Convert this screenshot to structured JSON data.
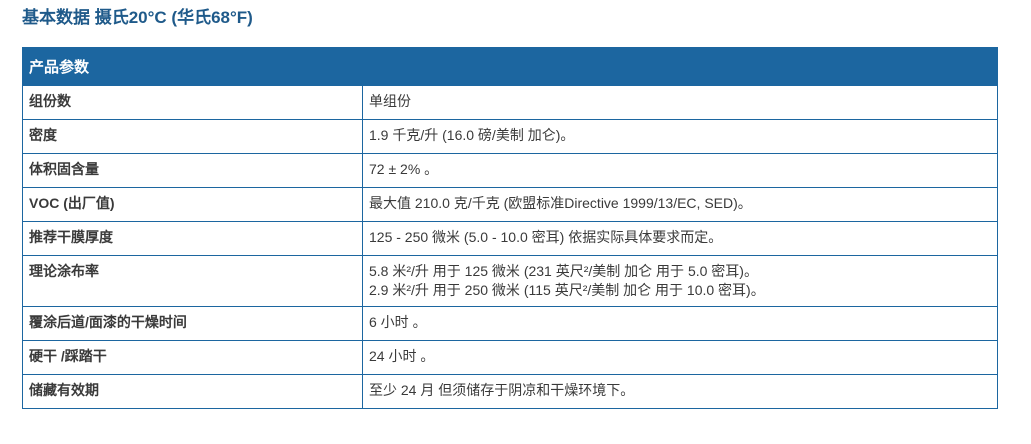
{
  "title": "基本数据 摄氏20°C (华氏68°F)",
  "table": {
    "header": "产品参数",
    "rows": [
      {
        "key": "组份数",
        "value": [
          "单组份"
        ]
      },
      {
        "key": "密度",
        "value": [
          "1.9 千克/升 (16.0 磅/美制 加仑)。"
        ]
      },
      {
        "key": "体积固含量",
        "value": [
          "72 ± 2% 。"
        ]
      },
      {
        "key": "VOC (出厂值)",
        "value": [
          "最大值 210.0 克/千克 (欧盟标准Directive 1999/13/EC, SED)。"
        ]
      },
      {
        "key": "推荐干膜厚度",
        "value": [
          "125 - 250 微米 (5.0 - 10.0 密耳) 依据实际具体要求而定。"
        ]
      },
      {
        "key": "理论涂布率",
        "value": [
          "5.8 米²/升 用于 125 微米 (231 英尺²/美制 加仑 用于 5.0 密耳)。",
          "2.9 米²/升 用于 250 微米 (115 英尺²/美制 加仑 用于 10.0 密耳)。"
        ]
      },
      {
        "key": "覆涂后道/面漆的干燥时间",
        "value": [
          "6 小时 。"
        ]
      },
      {
        "key": "硬干 /踩踏干",
        "value": [
          "24 小时 。"
        ]
      },
      {
        "key": "储藏有效期",
        "value": [
          "至少 24 月 但须储存于阴凉和干燥环境下。"
        ]
      }
    ]
  }
}
